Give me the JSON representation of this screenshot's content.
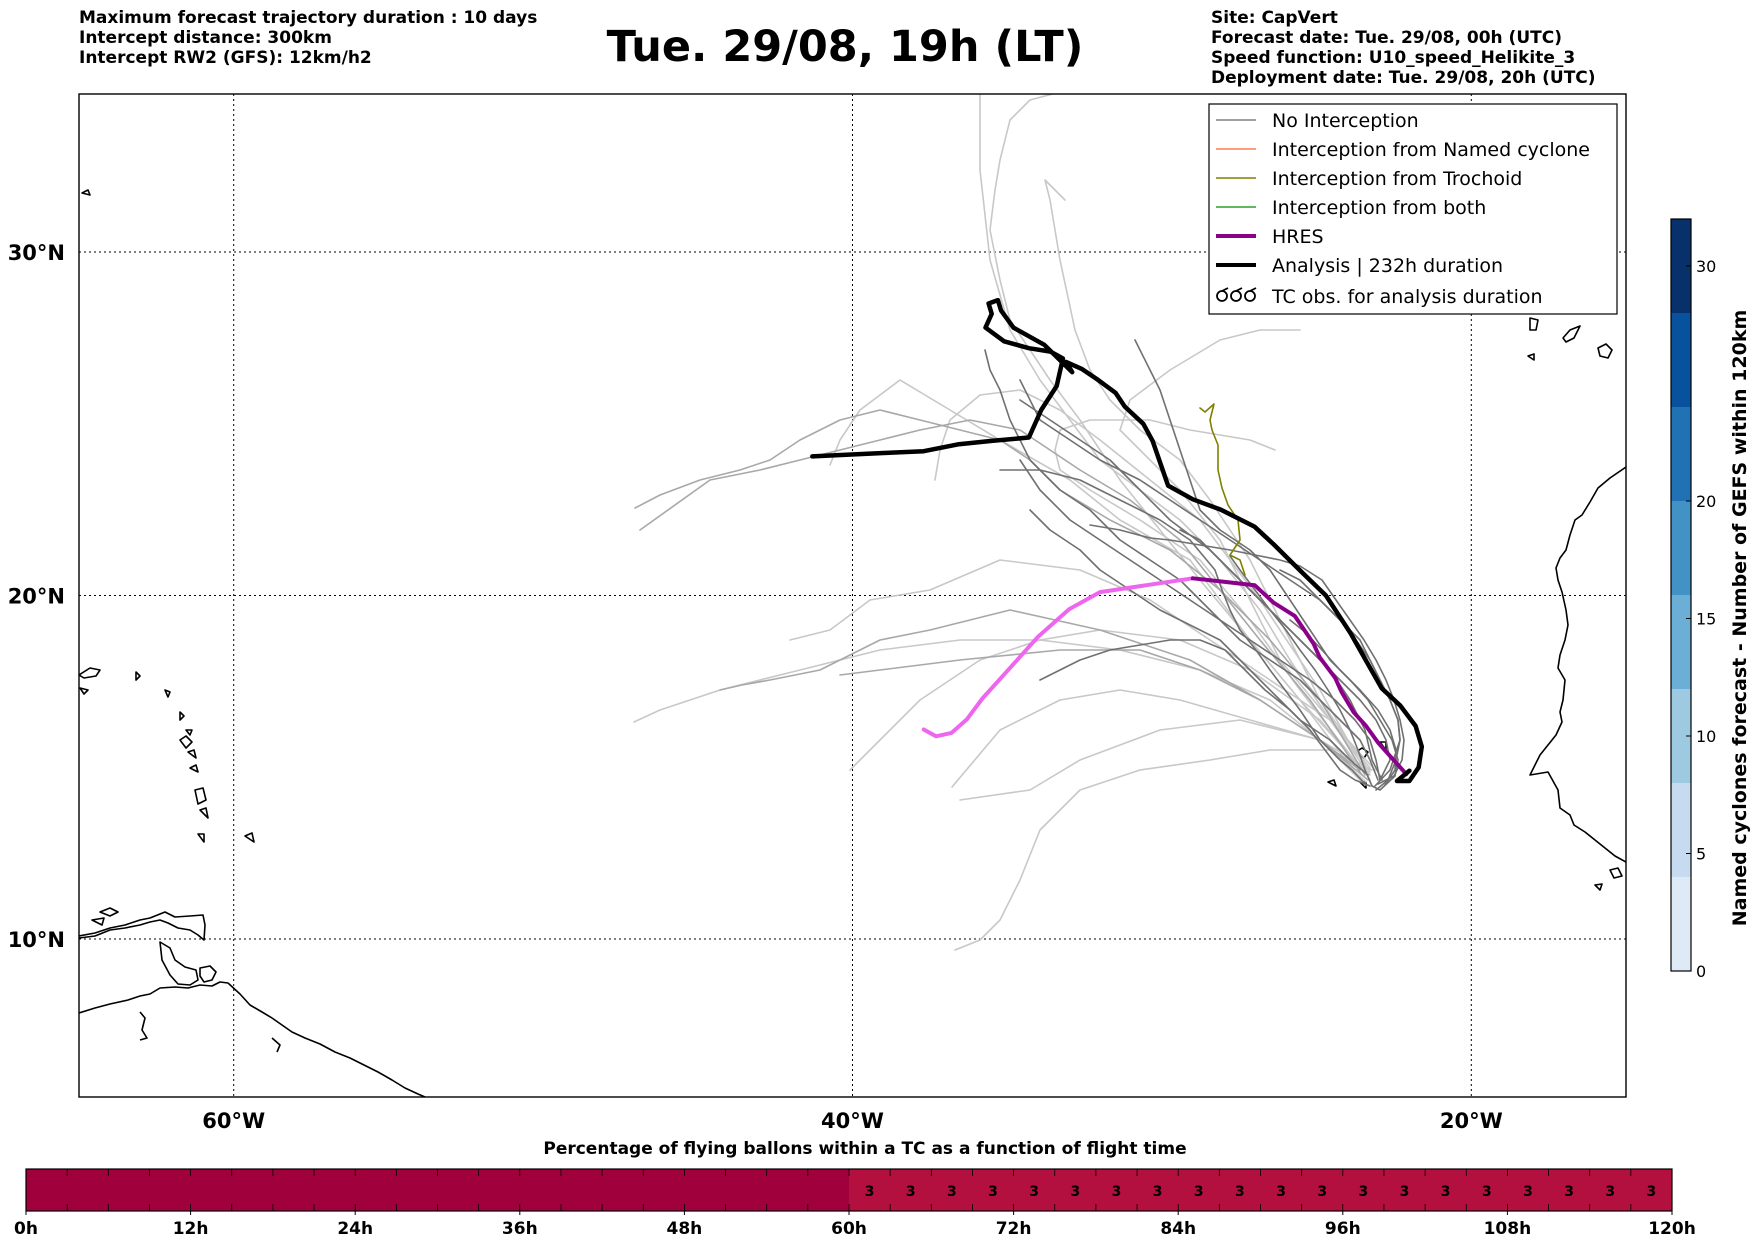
{
  "header": {
    "left_lines": [
      "Maximum forecast trajectory duration : 10 days",
      "Intercept distance: 300km",
      "Intercept RW2 (GFS):  12km/h2"
    ],
    "right_lines": [
      "Site: CapVert",
      "Forecast date: Tue. 29/08, 00h (UTC)",
      "Speed function: U10_speed_Helikite_3",
      "Deployment date: Tue. 29/08, 20h (UTC)"
    ],
    "title": "Tue. 29/08, 19h (LT)"
  },
  "map": {
    "lon_range": [
      -65,
      -15
    ],
    "lat_range": [
      5.4,
      34.6
    ],
    "lon_ticks": [
      {
        "value": -60,
        "label": "60°W"
      },
      {
        "value": -40,
        "label": "40°W"
      },
      {
        "value": -20,
        "label": "20°W"
      }
    ],
    "lat_ticks": [
      {
        "value": 30,
        "label": "30°N"
      },
      {
        "value": 20,
        "label": "20°N"
      },
      {
        "value": 10,
        "label": "10°N"
      }
    ],
    "gridlines": true
  },
  "legend": {
    "placement": "top-right",
    "items": [
      {
        "label": "No Interception",
        "color": "#808080",
        "style": "thin-line"
      },
      {
        "label": "Interception from Named cyclone",
        "color": "#ff7f50",
        "style": "thin-line"
      },
      {
        "label": "Interception from Trochoid",
        "color": "#808000",
        "style": "thin-line"
      },
      {
        "label": "Interception from both",
        "color": "#2ca02c",
        "style": "thin-line"
      },
      {
        "label": "HRES",
        "color": "#8b008b",
        "style": "thick-line"
      },
      {
        "label": "Analysis | 232h duration",
        "color": "#000000",
        "style": "thick-line"
      },
      {
        "label": "TC obs. for analysis duration",
        "color": "#000000",
        "style": "tc-symbols"
      }
    ]
  },
  "colorbar": {
    "label": "Named cyclones forecast - Number of GEFS within 120km",
    "min": 0,
    "max": 32,
    "ticks": [
      0,
      5,
      10,
      15,
      20,
      30
    ],
    "colors": [
      "#deebf7",
      "#c6dbef",
      "#9ecae1",
      "#6baed6",
      "#4292c6",
      "#2171b5",
      "#08519c",
      "#08306b"
    ]
  },
  "flight_bar": {
    "title": "Percentage of flying ballons within a TC as a function of flight time",
    "max_hours": 120,
    "tick_labels": [
      "0h",
      "12h",
      "24h",
      "36h",
      "48h",
      "60h",
      "72h",
      "84h",
      "96h",
      "108h",
      "120h"
    ],
    "cell_hours": 3,
    "color_first": "#a0003c",
    "color_rest": "#b3103f",
    "value_start_hour": 60,
    "cell_value": "3"
  },
  "chart_data": {
    "type": "map-trajectories",
    "hres": [
      [
        -22.1,
        14.8
      ],
      [
        -22.5,
        15.2
      ],
      [
        -23.0,
        15.7
      ],
      [
        -23.4,
        16.2
      ],
      [
        -23.8,
        16.6
      ],
      [
        -24.2,
        17.2
      ],
      [
        -24.4,
        17.6
      ],
      [
        -24.9,
        18.2
      ],
      [
        -25.1,
        18.6
      ],
      [
        -25.7,
        19.4
      ],
      [
        -26.4,
        19.8
      ],
      [
        -27.0,
        20.3
      ],
      [
        -28.0,
        20.4
      ],
      [
        -29.0,
        20.5
      ],
      [
        -30.5,
        20.3
      ],
      [
        -32.0,
        20.1
      ],
      [
        -33.0,
        19.6
      ],
      [
        -34.0,
        18.8
      ],
      [
        -35.0,
        17.8
      ],
      [
        -35.8,
        17.0
      ],
      [
        -36.3,
        16.4
      ],
      [
        -36.8,
        16.0
      ],
      [
        -37.3,
        15.9
      ],
      [
        -37.7,
        16.1
      ]
    ],
    "analysis": [
      [
        -22.0,
        14.9
      ],
      [
        -22.4,
        14.6
      ],
      [
        -22.0,
        14.6
      ],
      [
        -21.7,
        15.0
      ],
      [
        -21.6,
        15.6
      ],
      [
        -21.8,
        16.2
      ],
      [
        -22.3,
        16.8
      ],
      [
        -22.9,
        17.3
      ],
      [
        -23.4,
        18.1
      ],
      [
        -23.9,
        18.9
      ],
      [
        -24.7,
        20.0
      ],
      [
        -25.5,
        20.7
      ],
      [
        -26.4,
        21.5
      ],
      [
        -27.0,
        22.0
      ],
      [
        -28.1,
        22.5
      ],
      [
        -29.0,
        22.8
      ],
      [
        -29.8,
        23.2
      ],
      [
        -30.3,
        24.5
      ],
      [
        -30.6,
        25.0
      ],
      [
        -31.2,
        25.5
      ],
      [
        -31.5,
        25.9
      ],
      [
        -32.1,
        26.3
      ],
      [
        -32.6,
        26.6
      ],
      [
        -33.1,
        26.8
      ],
      [
        -32.9,
        26.5
      ],
      [
        -33.8,
        27.3
      ],
      [
        -34.8,
        27.8
      ],
      [
        -35.2,
        28.3
      ],
      [
        -35.3,
        28.6
      ],
      [
        -35.6,
        28.5
      ],
      [
        -35.5,
        28.2
      ],
      [
        -35.7,
        27.8
      ],
      [
        -35.1,
        27.4
      ],
      [
        -34.3,
        27.2
      ],
      [
        -33.6,
        27.1
      ],
      [
        -33.2,
        26.9
      ],
      [
        -33.4,
        26.1
      ],
      [
        -33.9,
        25.4
      ],
      [
        -34.3,
        24.6
      ],
      [
        -35.5,
        24.5
      ],
      [
        -36.6,
        24.4
      ],
      [
        -37.7,
        24.2
      ],
      [
        -39.0,
        24.15
      ],
      [
        -40.2,
        24.1
      ],
      [
        -41.3,
        24.05
      ]
    ]
  }
}
